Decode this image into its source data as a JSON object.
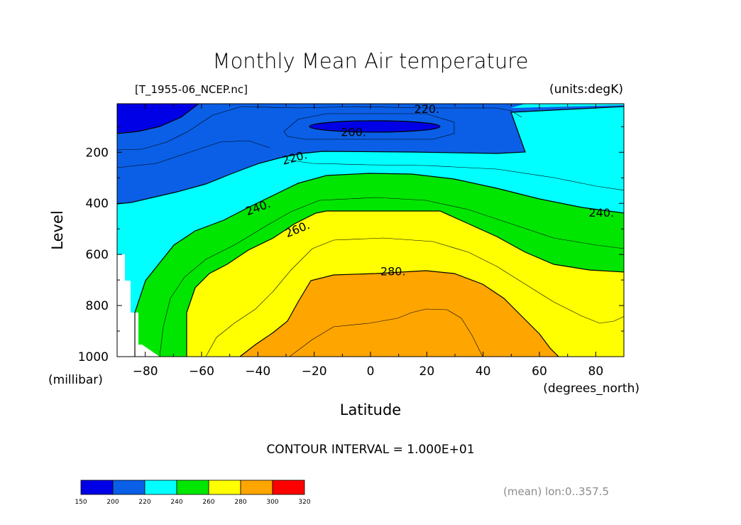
{
  "chart_data": {
    "type": "heatmap",
    "subtype": "filled-contour",
    "title": "Monthly Mean Air temperature",
    "file_label": "[T_1955-06_NCEP.nc]",
    "units_label": "(units:degK)",
    "xlabel": "Latitude",
    "x_unit": "(degrees_north)",
    "ylabel": "Level",
    "y_unit": "(millibar)",
    "xlim": [
      -90,
      90
    ],
    "ylim": [
      1000,
      10
    ],
    "x_ticks": [
      "-80",
      "-60",
      "-40",
      "-20",
      "0",
      "20",
      "40",
      "60",
      "80"
    ],
    "y_ticks": [
      "200",
      "400",
      "600",
      "800",
      "1000"
    ],
    "contour_interval_text": "CONTOUR INTERVAL = 1.000E+01",
    "footer_text": "(mean) lon:0..357.5",
    "contour_labels": [
      {
        "text": "220.",
        "lat": 20,
        "lev": 30
      },
      {
        "text": "200.",
        "lat": -6,
        "lev": 120
      },
      {
        "text": "220.",
        "lat": -27,
        "lev": 220
      },
      {
        "text": "240.",
        "lat": -40,
        "lev": 415
      },
      {
        "text": "260.",
        "lat": -26,
        "lev": 500
      },
      {
        "text": "280.",
        "lat": 8,
        "lev": 665
      },
      {
        "text": "240.",
        "lat": 82,
        "lev": 435
      }
    ],
    "fill_levels": [
      {
        "min": 150,
        "max": 200,
        "color": "#0000e6"
      },
      {
        "min": 200,
        "max": 220,
        "color": "#0a5fe6"
      },
      {
        "min": 220,
        "max": 240,
        "color": "#00ffff"
      },
      {
        "min": 240,
        "max": 260,
        "color": "#00e600"
      },
      {
        "min": 260,
        "max": 280,
        "color": "#ffff00"
      },
      {
        "min": 280,
        "max": 300,
        "color": "#ffa500"
      },
      {
        "min": 300,
        "max": 320,
        "color": "#ff0000"
      }
    ],
    "colorbar_labels": [
      "150",
      "200",
      "220",
      "240",
      "260",
      "280",
      "300",
      "320"
    ]
  }
}
